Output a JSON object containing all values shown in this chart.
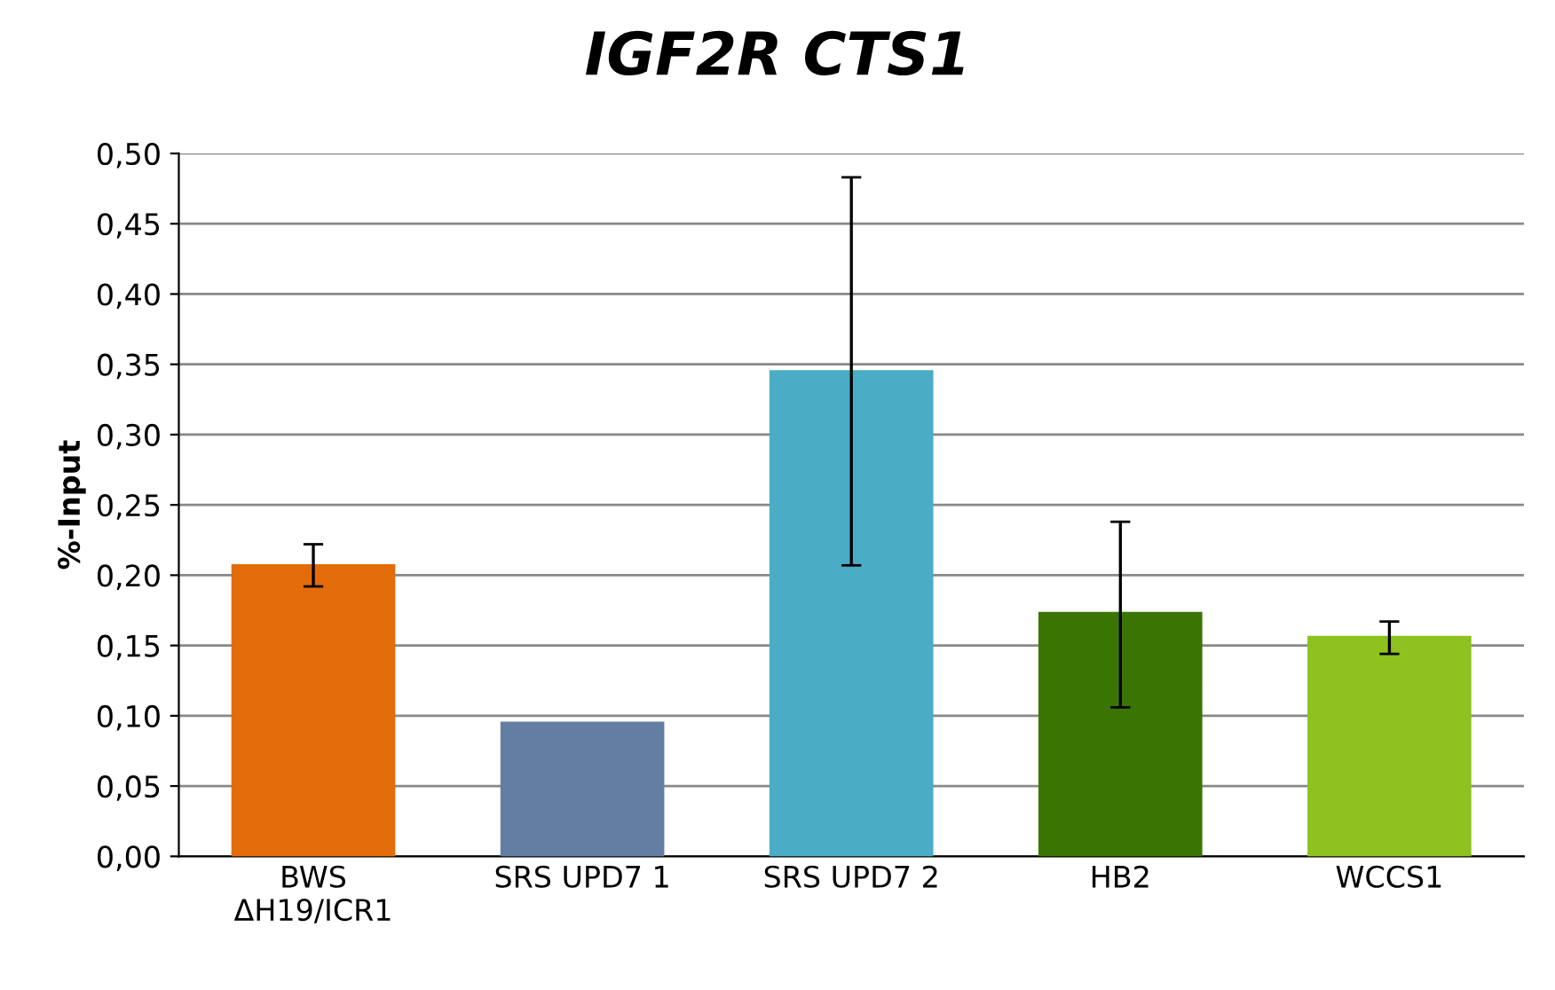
{
  "chart_data": {
    "type": "bar",
    "title": "IGF2R CTS1",
    "ylabel": "%-Input",
    "categories": [
      "BWS\nΔH19/ICR1",
      "SRS UPD7 1",
      "SRS UPD7 2",
      "HB2",
      "WCCS1"
    ],
    "values": [
      0.207,
      0.095,
      0.345,
      0.173,
      0.156
    ],
    "colors": [
      "#e36c0a",
      "#647ea3",
      "#4bacc6",
      "#3a7504",
      "#8dc21f"
    ],
    "errors": [
      [
        0.192,
        0.222
      ],
      null,
      [
        0.207,
        0.483
      ],
      [
        0.106,
        0.238
      ],
      [
        0.144,
        0.167
      ]
    ],
    "ylim": [
      0,
      0.5
    ],
    "yticks": [
      {
        "value": 0,
        "label": "0,00"
      },
      {
        "value": 0.05,
        "label": "0,05"
      },
      {
        "value": 0.1,
        "label": "0,10"
      },
      {
        "value": 0.15,
        "label": "0,15"
      },
      {
        "value": 0.2,
        "label": "0,20"
      },
      {
        "value": 0.25,
        "label": "0,25"
      },
      {
        "value": 0.3,
        "label": "0,30"
      },
      {
        "value": 0.35,
        "label": "0,35"
      },
      {
        "value": 0.4,
        "label": "0,40"
      },
      {
        "value": 0.45,
        "label": "0,45"
      },
      {
        "value": 0.5,
        "label": "0,50"
      }
    ],
    "grid": "y"
  }
}
